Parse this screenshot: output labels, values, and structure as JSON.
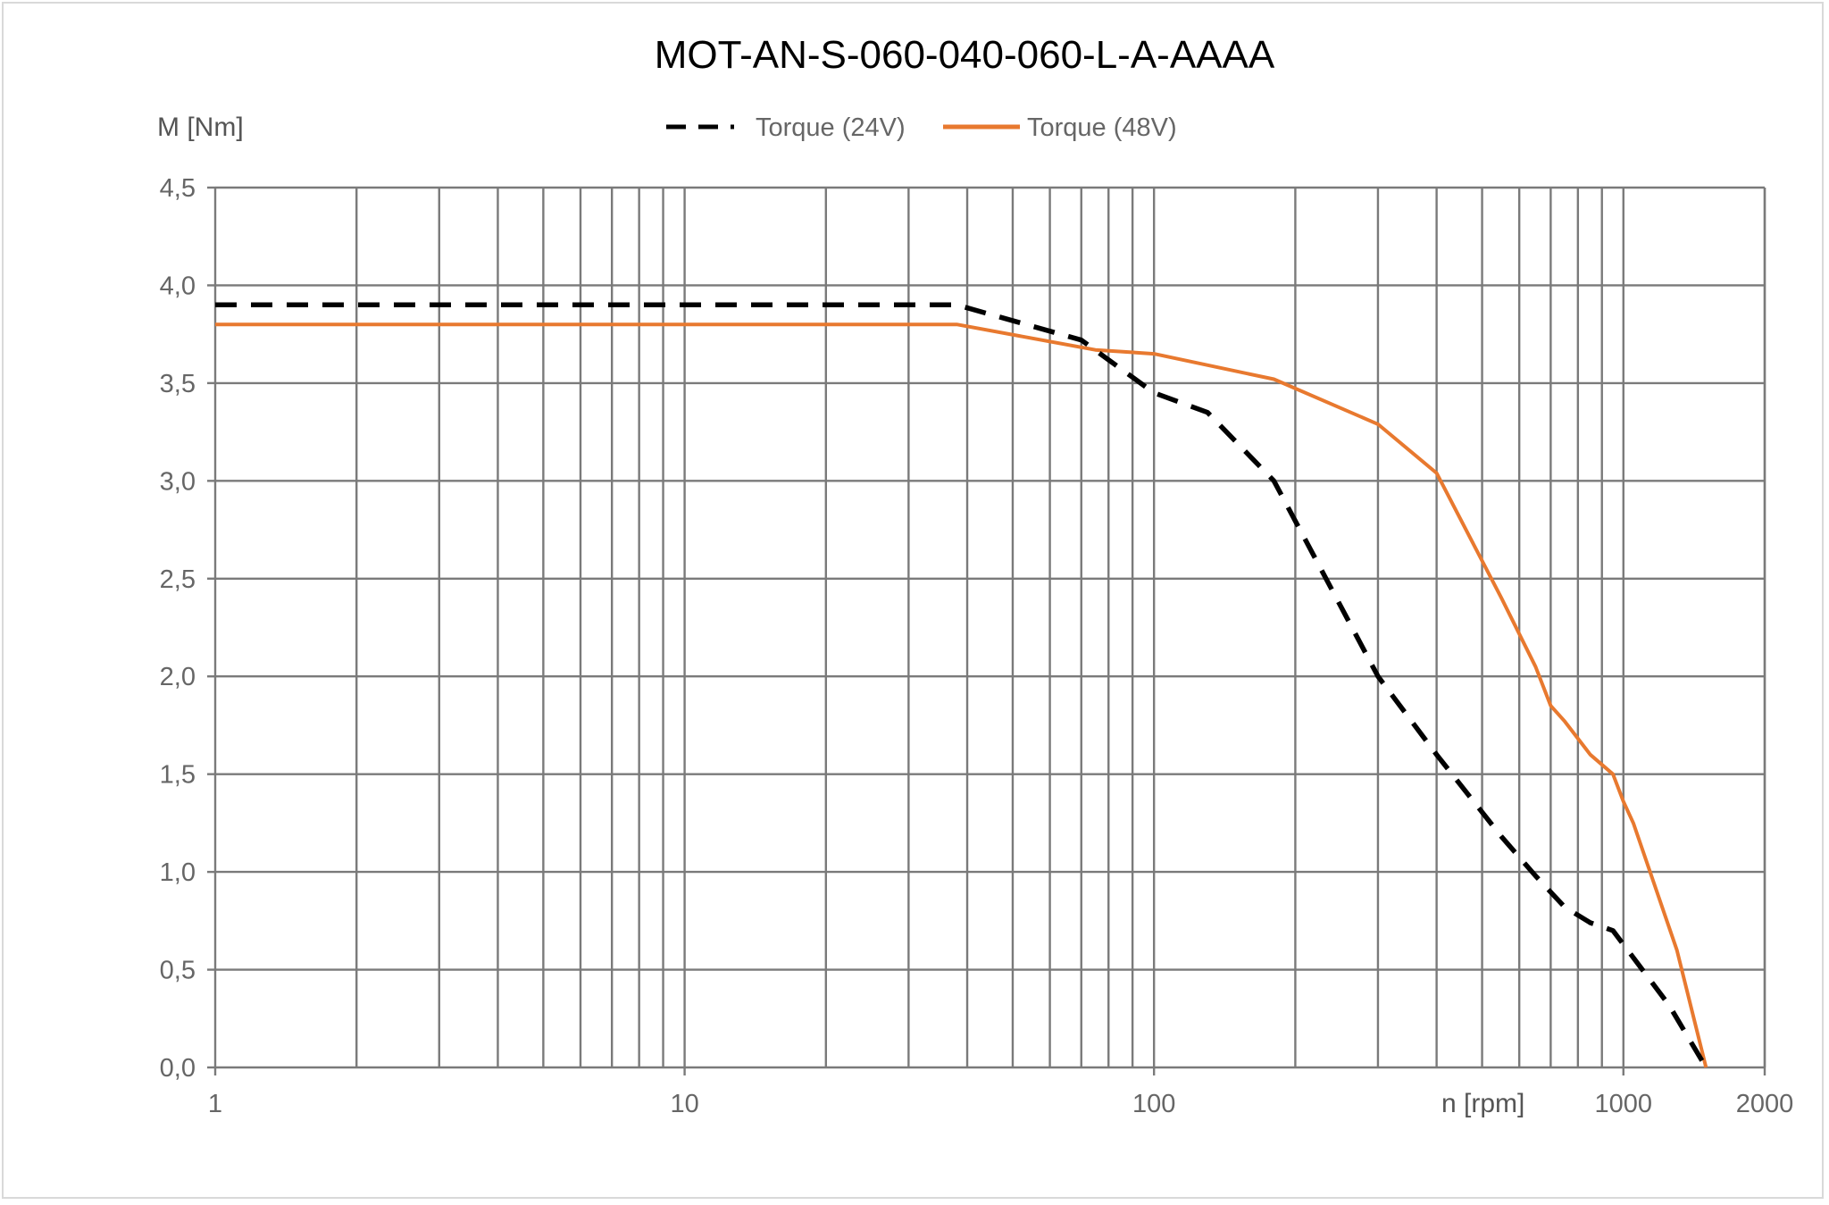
{
  "chart_data": {
    "type": "line",
    "title": "MOT-AN-S-060-040-060-L-A-AAAA",
    "ylabel": "M [Nm]",
    "xlabel": "n [rpm]",
    "xscale": "log",
    "xlim": [
      1,
      2000
    ],
    "ylim": [
      0,
      4.5
    ],
    "grid": true,
    "legend_position": "top-center",
    "x_tick_labels": [
      "1",
      "10",
      "100",
      "1000",
      "2000"
    ],
    "y_tick_labels": [
      "0,0",
      "0,5",
      "1,0",
      "1,5",
      "2,0",
      "2,5",
      "3,0",
      "3,5",
      "4,0",
      "4,5"
    ],
    "series": [
      {
        "name": "Torque (24V)",
        "color": "#000000",
        "style": "dashed",
        "x": [
          1,
          38,
          70,
          100,
          130,
          180,
          210,
          300,
          400,
          550,
          650,
          750,
          850,
          950,
          1250,
          1500
        ],
        "y": [
          3.9,
          3.9,
          3.72,
          3.45,
          3.35,
          3.0,
          2.7,
          2.0,
          1.6,
          1.18,
          0.98,
          0.82,
          0.74,
          0.7,
          0.32,
          0.0
        ]
      },
      {
        "name": "Torque (48V)",
        "color": "#e8792f",
        "style": "solid",
        "x": [
          1,
          38,
          75,
          100,
          180,
          300,
          400,
          550,
          650,
          700,
          750,
          850,
          950,
          1000,
          1050,
          1300,
          1500
        ],
        "y": [
          3.8,
          3.8,
          3.67,
          3.65,
          3.52,
          3.29,
          3.04,
          2.4,
          2.05,
          1.85,
          1.77,
          1.6,
          1.5,
          1.36,
          1.25,
          0.6,
          0.0
        ]
      }
    ]
  }
}
